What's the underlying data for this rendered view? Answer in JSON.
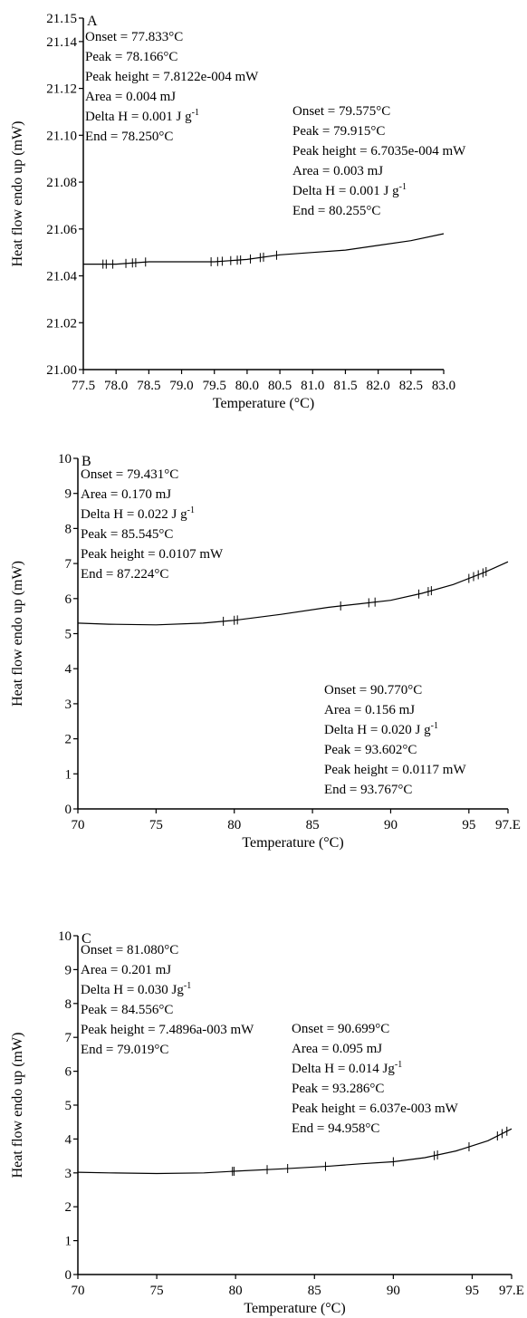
{
  "chart_data": [
    {
      "type": "line",
      "panel": "A",
      "xlabel": "Temperature (°C)",
      "ylabel": "Heat flow endo up (mW)",
      "xlim": [
        77.5,
        83.0
      ],
      "ylim": [
        21.0,
        21.15
      ],
      "xticks": [
        "77.5",
        "78.0",
        "78.5",
        "79.0",
        "79.5",
        "80.0",
        "80.5",
        "81.0",
        "81.5",
        "82.0",
        "82.5",
        "83.0"
      ],
      "yticks": [
        "21.00",
        "21.02",
        "21.04",
        "21.06",
        "21.08",
        "21.10",
        "21.12",
        "21.14",
        "21.15"
      ],
      "series": [
        {
          "x": [
            77.5,
            78.0,
            78.5,
            79.0,
            79.5,
            80.0,
            80.5,
            81.0,
            81.5,
            82.0,
            82.5,
            83.0
          ],
          "values": [
            21.045,
            21.045,
            21.046,
            21.046,
            21.046,
            21.047,
            21.049,
            21.05,
            21.051,
            21.053,
            21.055,
            21.058
          ]
        }
      ],
      "tick_marks_x": [
        77.8,
        77.85,
        77.95,
        78.15,
        78.25,
        78.3,
        78.45,
        79.45,
        79.55,
        79.62,
        79.75,
        79.85,
        79.9,
        80.05,
        80.2,
        80.25,
        80.45
      ],
      "annotations": [
        {
          "lines": [
            "Onset = 77.833°C",
            "Peak = 78.166°C",
            "Peak height = 7.8122e-004 mW",
            "Area = 0.004 mJ",
            "Delta H = 0.001 J g|-1",
            "End = 78.250°C"
          ]
        },
        {
          "lines": [
            "Onset = 79.575°C",
            "Peak = 79.915°C",
            "Peak height = 6.7035e-004 mW",
            "Area = 0.003 mJ",
            "Delta H = 0.001 J g|-1",
            "End = 80.255°C"
          ]
        }
      ]
    },
    {
      "type": "line",
      "panel": "B",
      "xlabel": "Temperature (°C)",
      "ylabel": "Heat flow endo up (mW)",
      "xlim": [
        70,
        97.5
      ],
      "ylim": [
        0,
        10
      ],
      "xticks": [
        "70",
        "75",
        "80",
        "85",
        "90",
        "95",
        "97.E"
      ],
      "yticks": [
        "0",
        "1",
        "2",
        "3",
        "4",
        "5",
        "6",
        "7",
        "8",
        "9",
        "10"
      ],
      "series": [
        {
          "x": [
            70,
            72,
            75,
            78,
            80,
            83,
            86,
            88,
            90,
            92,
            94,
            96,
            97.5
          ],
          "values": [
            5.3,
            5.27,
            5.25,
            5.3,
            5.38,
            5.55,
            5.75,
            5.85,
            5.95,
            6.15,
            6.4,
            6.75,
            7.05
          ]
        }
      ],
      "tick_marks_x": [
        79.3,
        80.0,
        80.2,
        86.8,
        88.6,
        89.0,
        91.8,
        92.4,
        92.6,
        95.0,
        95.3,
        95.6,
        95.9,
        96.1
      ],
      "annotations": [
        {
          "lines": [
            "Onset = 79.431°C",
            "Area = 0.170 mJ",
            "Delta H = 0.022 J g|-1",
            "Peak = 85.545°C",
            "Peak height = 0.0107 mW",
            "End = 87.224°C"
          ]
        },
        {
          "lines": [
            "Onset = 90.770°C",
            "Area = 0.156 mJ",
            "Delta H = 0.020 J g|-1",
            "Peak = 93.602°C",
            "Peak height = 0.0117 mW",
            "End = 93.767°C"
          ]
        }
      ]
    },
    {
      "type": "line",
      "panel": "C",
      "xlabel": "Temperature (°C)",
      "ylabel": "Heat flow endo up (mW)",
      "xlim": [
        70,
        97.5
      ],
      "ylim": [
        0,
        10
      ],
      "xticks": [
        "70",
        "75",
        "80",
        "85",
        "90",
        "95",
        "97.E"
      ],
      "yticks": [
        "0",
        "1",
        "2",
        "3",
        "4",
        "5",
        "6",
        "7",
        "8",
        "9",
        "10"
      ],
      "series": [
        {
          "x": [
            70,
            72,
            75,
            78,
            80,
            83,
            86,
            88,
            90,
            92,
            94,
            96,
            97.5
          ],
          "values": [
            3.02,
            3.0,
            2.98,
            3.0,
            3.05,
            3.12,
            3.2,
            3.27,
            3.33,
            3.45,
            3.65,
            3.95,
            4.3
          ]
        }
      ],
      "tick_marks_x": [
        79.8,
        79.9,
        82.0,
        83.3,
        85.7,
        90.0,
        92.6,
        92.8,
        94.8,
        96.6,
        96.9,
        97.2
      ],
      "annotations": [
        {
          "lines": [
            "Onset = 81.080°C",
            "Area = 0.201 mJ",
            "Delta H = 0.030 Jg|-1",
            "Peak = 84.556°C",
            "Peak height = 7.4896a-003 mW",
            "End = 79.019°C"
          ]
        },
        {
          "lines": [
            "Onset = 90.699°C",
            "Area = 0.095 mJ",
            "Delta H = 0.014 Jg|-1",
            "Peak = 93.286°C",
            "Peak height = 6.037e-003 mW",
            "End = 94.958°C"
          ]
        }
      ]
    }
  ]
}
